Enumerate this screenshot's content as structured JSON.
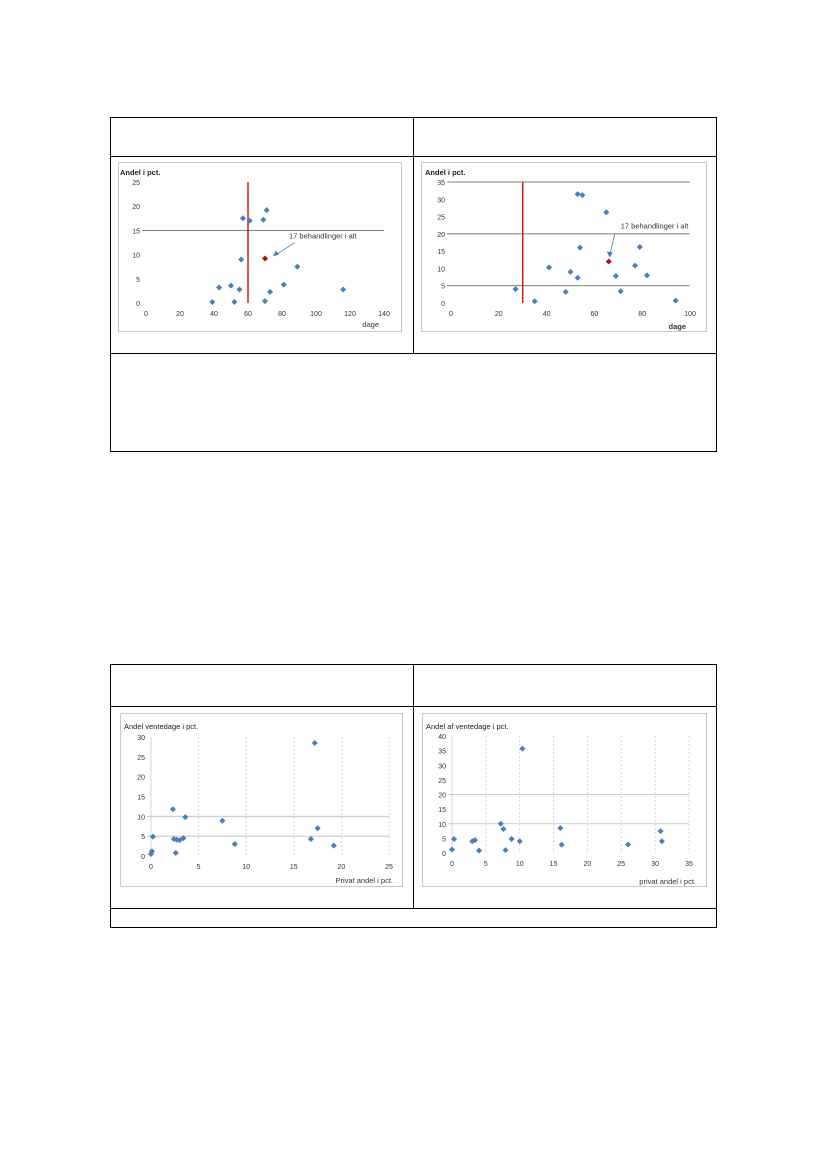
{
  "chart_data": [
    {
      "type": "scatter",
      "ylabel": "Andel i pct.",
      "xlabel": "dage",
      "xlim": [
        0,
        140
      ],
      "ylim": [
        0,
        25
      ],
      "xticks": [
        "0",
        "20",
        "40",
        "60",
        "80",
        "100",
        "120",
        "140"
      ],
      "yticks": [
        "0",
        "5",
        "10",
        "15",
        "20",
        "25"
      ],
      "threshold_line_y": 15,
      "vertical_line_x": 60,
      "annotation": "17 behandlinger i alt",
      "highlight_point": {
        "x": 70,
        "y": 9.2
      },
      "series": [
        {
          "name": "points",
          "x": [
            39,
            43,
            50,
            52,
            55,
            56,
            57,
            61,
            69,
            70,
            71,
            73,
            81,
            89,
            116
          ],
          "y": [
            0.2,
            3.2,
            3.6,
            0.2,
            2.8,
            9,
            17.5,
            17,
            17.2,
            0.4,
            19.2,
            2.3,
            3.8,
            7.5,
            2.8
          ]
        }
      ]
    },
    {
      "type": "scatter",
      "ylabel": "Andel i pct.",
      "xlabel": "dage",
      "xlim": [
        0,
        100
      ],
      "ylim": [
        0,
        35
      ],
      "xticks": [
        "0",
        "20",
        "40",
        "60",
        "80",
        "100"
      ],
      "yticks": [
        "0",
        "5",
        "10",
        "15",
        "20",
        "25",
        "30",
        "35"
      ],
      "threshold_lines_y": [
        5,
        20,
        35
      ],
      "vertical_line_x": 30,
      "annotation": "17 behandlinger i alt",
      "highlight_point": {
        "x": 66,
        "y": 12
      },
      "series": [
        {
          "name": "points",
          "x": [
            27,
            35,
            41,
            48,
            50,
            53,
            53,
            54,
            55,
            65,
            69,
            71,
            77,
            79,
            82,
            94
          ],
          "y": [
            4,
            0.5,
            10.3,
            3.2,
            9,
            7.3,
            31.5,
            16,
            31.2,
            26.2,
            7.8,
            3.4,
            10.8,
            16.2,
            8,
            0.7
          ]
        }
      ]
    },
    {
      "type": "scatter",
      "ylabel": "Andel ventedage i pct.",
      "xlabel": "Privat andel i pct.",
      "xlim": [
        0,
        25
      ],
      "ylim": [
        0,
        30
      ],
      "xticks": [
        "0",
        "5",
        "10",
        "15",
        "20",
        "25"
      ],
      "yticks": [
        "0",
        "5",
        "10",
        "15",
        "20",
        "25",
        "30"
      ],
      "threshold_lines_y": [
        5,
        10
      ],
      "series": [
        {
          "name": "points",
          "x": [
            0,
            0.1,
            0.2,
            2.3,
            2.4,
            2.6,
            2.7,
            3,
            3.4,
            3.6,
            7.5,
            8.8,
            16.8,
            17.2,
            17.5,
            19.2
          ],
          "y": [
            0.5,
            1.2,
            4.9,
            11.8,
            4.3,
            0.8,
            4.1,
            4,
            4.5,
            9.8,
            8.9,
            3,
            4.3,
            28.5,
            7,
            2.6
          ]
        }
      ]
    },
    {
      "type": "scatter",
      "ylabel": "Andel af ventedage i pct.",
      "xlabel": "privat andel i pct.",
      "xlim": [
        0,
        35
      ],
      "ylim": [
        0,
        40
      ],
      "xticks": [
        "0",
        "5",
        "10",
        "15",
        "20",
        "25",
        "30",
        "35"
      ],
      "yticks": [
        "0",
        "5",
        "10",
        "15",
        "20",
        "25",
        "30",
        "35",
        "40"
      ],
      "threshold_lines_y": [
        10,
        20
      ],
      "series": [
        {
          "name": "points",
          "x": [
            0,
            0.3,
            3,
            3.4,
            4,
            7.2,
            7.6,
            7.9,
            8.8,
            10,
            10.4,
            16,
            16.2,
            26,
            30.8,
            31
          ],
          "y": [
            1.2,
            4.8,
            4,
            4.4,
            0.8,
            10,
            8.2,
            1,
            4.8,
            4,
            35.7,
            8.5,
            2.8,
            2.9,
            7.5,
            4
          ]
        }
      ]
    }
  ]
}
